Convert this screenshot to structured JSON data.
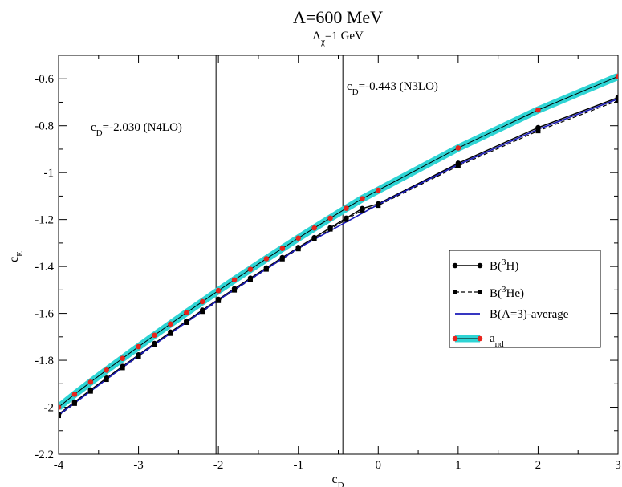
{
  "chart_data": {
    "type": "line",
    "title": "Λ=600 MeV",
    "subtitle": {
      "main": "Λ",
      "sub": "χ",
      "rest": "=1 GeV"
    },
    "xlabel": {
      "main": "c",
      "sub": "D"
    },
    "ylabel": {
      "main": "c",
      "sub": "E"
    },
    "xlim": [
      -4,
      3
    ],
    "ylim": [
      -2.2,
      -0.5
    ],
    "x_ticks": [
      -4,
      -3,
      -2,
      -1,
      0,
      1,
      2,
      3
    ],
    "x_tick_labels": [
      "-4",
      "-3",
      "-2",
      "-1",
      "0",
      "1",
      "2",
      "3"
    ],
    "y_ticks": [
      -2.2,
      -2.0,
      -1.8,
      -1.6,
      -1.4,
      -1.2,
      -1.0,
      -0.8,
      -0.6
    ],
    "y_tick_labels": [
      "-2.2",
      "-2",
      "-1.8",
      "-1.6",
      "-1.4",
      "-1.2",
      "-1",
      "-0.8",
      "-0.6"
    ],
    "grid": false,
    "legend_position": "right",
    "vertical_lines": [
      {
        "x": -2.03,
        "label": {
          "main": "c",
          "sub": "D",
          "rest": "=-2.030 (N4LO)"
        }
      },
      {
        "x": -0.443,
        "label": {
          "main": "c",
          "sub": "D",
          "rest": "=-0.443 (N3LO)"
        }
      }
    ],
    "series": [
      {
        "name": {
          "main": "B(",
          "sup": "3",
          "rest": "H)"
        },
        "color": "#000000",
        "style": "solid-circle",
        "x": [
          -4,
          -3.8,
          -3.6,
          -3.4,
          -3.2,
          -3.0,
          -2.8,
          -2.6,
          -2.4,
          -2.2,
          -2.0,
          -1.8,
          -1.6,
          -1.4,
          -1.2,
          -1.0,
          -0.8,
          -0.6,
          -0.4,
          -0.2,
          0,
          1,
          2,
          3
        ],
        "y": [
          -2.03,
          -1.978,
          -1.926,
          -1.876,
          -1.826,
          -1.777,
          -1.728,
          -1.68,
          -1.633,
          -1.586,
          -1.54,
          -1.495,
          -1.45,
          -1.406,
          -1.362,
          -1.319,
          -1.277,
          -1.235,
          -1.194,
          -1.153,
          -1.133,
          -0.96,
          -0.808,
          -0.68
        ]
      },
      {
        "name": {
          "main": "B(",
          "sup": "3",
          "rest": "He)"
        },
        "color": "#000000",
        "style": "dashed-square",
        "x": [
          -4,
          -3.8,
          -3.6,
          -3.4,
          -3.2,
          -3.0,
          -2.8,
          -2.6,
          -2.4,
          -2.2,
          -2.0,
          -1.8,
          -1.6,
          -1.4,
          -1.2,
          -1.0,
          -0.8,
          -0.6,
          -0.4,
          -0.2,
          0,
          1,
          2,
          3
        ],
        "y": [
          -2.036,
          -1.984,
          -1.932,
          -1.882,
          -1.832,
          -1.783,
          -1.734,
          -1.686,
          -1.639,
          -1.592,
          -1.546,
          -1.501,
          -1.456,
          -1.412,
          -1.368,
          -1.325,
          -1.283,
          -1.241,
          -1.2,
          -1.16,
          -1.14,
          -0.972,
          -0.822,
          -0.693
        ]
      },
      {
        "name": {
          "main": "B(A=3)-average"
        },
        "color": "#1a1ab8",
        "style": "solid-blue",
        "x": [
          -4,
          -3.0,
          -2.0,
          -1.0,
          0,
          1,
          2,
          3
        ],
        "y": [
          -2.033,
          -1.78,
          -1.543,
          -1.322,
          -1.136,
          -0.966,
          -0.815,
          -0.686
        ]
      },
      {
        "name": {
          "main": "a",
          "sub": "nd"
        },
        "color": "#e8241c",
        "band_color": "#2ed4d4",
        "style": "cyan-band-red-circle",
        "x": [
          -4,
          -3.8,
          -3.6,
          -3.4,
          -3.2,
          -3.0,
          -2.8,
          -2.6,
          -2.4,
          -2.2,
          -2.0,
          -1.8,
          -1.6,
          -1.4,
          -1.2,
          -1.0,
          -0.8,
          -0.6,
          -0.4,
          -0.2,
          0,
          1,
          2,
          3
        ],
        "y": [
          -2.0,
          -1.945,
          -1.893,
          -1.842,
          -1.792,
          -1.742,
          -1.693,
          -1.645,
          -1.597,
          -1.55,
          -1.503,
          -1.457,
          -1.412,
          -1.367,
          -1.323,
          -1.279,
          -1.236,
          -1.194,
          -1.152,
          -1.111,
          -1.075,
          -0.895,
          -0.733,
          -0.59
        ]
      }
    ]
  }
}
